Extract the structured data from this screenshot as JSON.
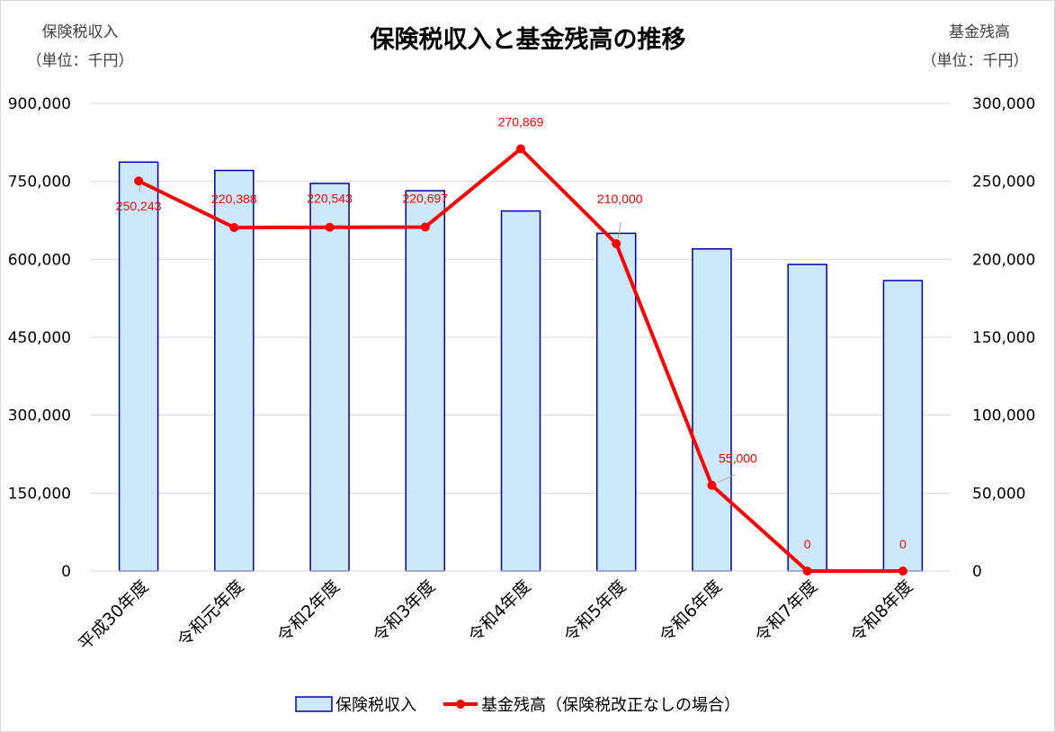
{
  "chart_data": {
    "type": "bar",
    "title": "保険税収入と基金残高の推移",
    "y_left_caption": [
      "保険税収入",
      "（単位：千円）"
    ],
    "y_right_caption": [
      "基金残高",
      "（単位：千円）"
    ],
    "categories": [
      "平成30年度",
      "令和元年度",
      "令和2年度",
      "令和3年度",
      "令和4年度",
      "令和5年度",
      "令和6年度",
      "令和7年度",
      "令和8年度"
    ],
    "ylim_left": [
      0,
      900000
    ],
    "yticks_left": [
      "0",
      "150,000",
      "300,000",
      "450,000",
      "600,000",
      "750,000",
      "900,000"
    ],
    "ylim_right": [
      0,
      300000
    ],
    "yticks_right": [
      "0",
      "50,000",
      "100,000",
      "150,000",
      "200,000",
      "250,000",
      "300,000"
    ],
    "grid": true,
    "legend_position": "bottom",
    "series": [
      {
        "name": "保険税収入",
        "type": "bar",
        "axis": "left",
        "fill": "#cce8fa",
        "stroke": "#0000a0",
        "values": [
          787000,
          771000,
          746000,
          732000,
          693000,
          650000,
          620000,
          590000,
          559000
        ]
      },
      {
        "name": "基金残高（保険税改正なしの場合）",
        "type": "line",
        "axis": "right",
        "color": "#ff0000",
        "values": [
          250243,
          220388,
          220543,
          220697,
          270869,
          210000,
          55000,
          0,
          0
        ],
        "labels": [
          "250,243",
          "220,388",
          "220,543",
          "220,697",
          "270,869",
          "210,000",
          "55,000",
          "0",
          "0"
        ]
      }
    ]
  }
}
